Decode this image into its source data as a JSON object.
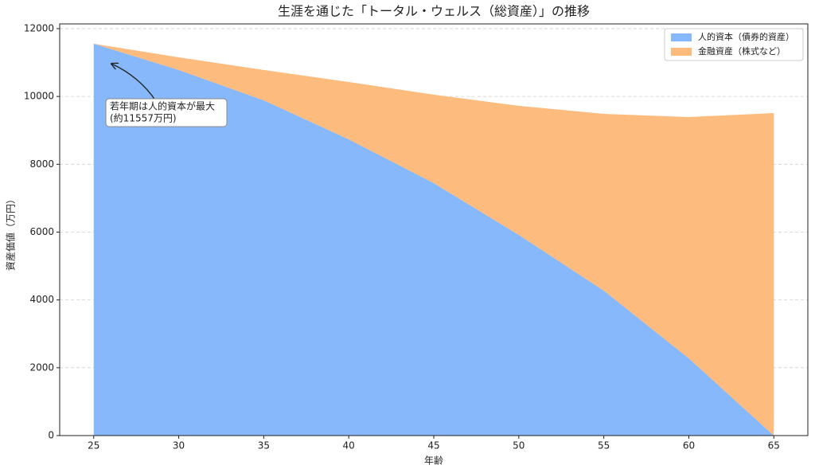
{
  "chart_data": {
    "type": "stacked_area",
    "title": "生涯を通じた「トータル・ウェルス（総資産）」の推移",
    "x_label": "年齢",
    "y_label": "資産価値（万円）",
    "x": [
      25,
      30,
      35,
      40,
      45,
      50,
      55,
      60,
      65
    ],
    "series": [
      {
        "name": "人的資本（債券的資産）",
        "color": "#86b8fb",
        "values": [
          11557,
          10780,
          9887,
          8736,
          7445,
          5918,
          4274,
          2278,
          0
        ]
      },
      {
        "name": "金融資産（株式など）",
        "color": "#fdbb7e",
        "values": [
          0,
          375,
          893,
          1691,
          2607,
          3805,
          5214,
          7116,
          9511
        ]
      }
    ],
    "xlim": [
      23,
      67
    ],
    "xticks": [
      25,
      30,
      35,
      40,
      45,
      50,
      55,
      60,
      65
    ],
    "ylim": [
      0,
      12140
    ],
    "yticks": [
      0,
      2000,
      4000,
      6000,
      8000,
      10000,
      12000
    ],
    "grid": true,
    "legend": "upper right",
    "annotation": {
      "lines": [
        "若年期は人的資本が最大",
        "(約11557万円)"
      ]
    }
  }
}
